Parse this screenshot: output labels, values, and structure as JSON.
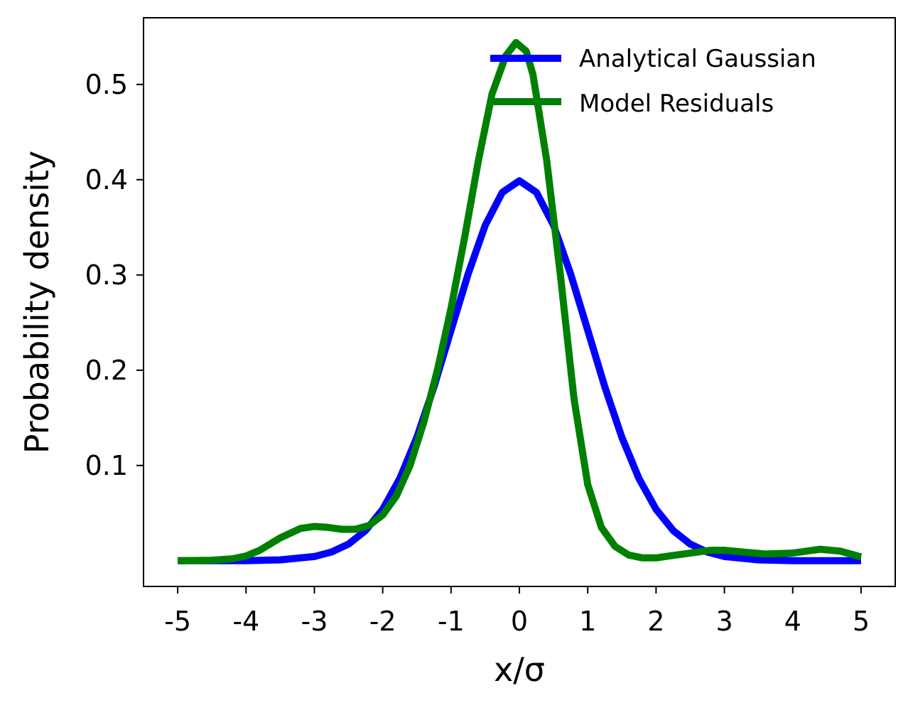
{
  "chart_data": {
    "type": "line",
    "title": "",
    "xlabel": "x/σ",
    "ylabel": "Probability density",
    "xlim": [
      -5.5,
      5.5
    ],
    "ylim": [
      -0.027,
      0.57
    ],
    "x_ticks": [
      -5,
      -4,
      -3,
      -2,
      -1,
      0,
      1,
      2,
      3,
      4,
      5
    ],
    "x_tick_labels": [
      "-5",
      "-4",
      "-3",
      "-2",
      "-1",
      "0",
      "1",
      "2",
      "3",
      "4",
      "5"
    ],
    "y_ticks": [
      0.1,
      0.2,
      0.3,
      0.4,
      0.5
    ],
    "y_tick_labels": [
      "0.1",
      "0.2",
      "0.3",
      "0.4",
      "0.5"
    ],
    "grid": false,
    "legend": {
      "placement": "upper-right",
      "frame": false
    },
    "series": [
      {
        "name": "Analytical Gaussian",
        "color": "#0000ff",
        "x": [
          -5.0,
          -4.5,
          -4.0,
          -3.5,
          -3.0,
          -2.75,
          -2.5,
          -2.25,
          -2.0,
          -1.75,
          -1.5,
          -1.25,
          -1.0,
          -0.75,
          -0.5,
          -0.25,
          0.0,
          0.25,
          0.5,
          0.75,
          1.0,
          1.25,
          1.5,
          1.75,
          2.0,
          2.25,
          2.5,
          2.75,
          3.0,
          3.5,
          4.0,
          4.5,
          5.0
        ],
        "y": [
          0.0,
          0.0,
          0.0001,
          0.0009,
          0.0044,
          0.0091,
          0.0175,
          0.0317,
          0.054,
          0.0863,
          0.1295,
          0.1826,
          0.242,
          0.3011,
          0.3521,
          0.3867,
          0.3989,
          0.3867,
          0.3521,
          0.3011,
          0.242,
          0.1826,
          0.1295,
          0.0863,
          0.054,
          0.0317,
          0.0175,
          0.0091,
          0.0044,
          0.0009,
          0.0001,
          0.0,
          0.0
        ]
      },
      {
        "name": "Model Residuals",
        "color": "#008000",
        "x": [
          -5.0,
          -4.5,
          -4.2,
          -4.0,
          -3.8,
          -3.5,
          -3.2,
          -3.0,
          -2.8,
          -2.6,
          -2.4,
          -2.2,
          -2.0,
          -1.8,
          -1.6,
          -1.4,
          -1.2,
          -1.0,
          -0.8,
          -0.6,
          -0.4,
          -0.2,
          -0.05,
          0.1,
          0.2,
          0.4,
          0.6,
          0.8,
          1.0,
          1.2,
          1.4,
          1.6,
          1.8,
          2.0,
          2.2,
          2.5,
          2.8,
          3.0,
          3.3,
          3.6,
          4.0,
          4.4,
          4.7,
          5.0
        ],
        "y": [
          0.0,
          0.0005,
          0.002,
          0.005,
          0.011,
          0.024,
          0.034,
          0.036,
          0.035,
          0.033,
          0.033,
          0.037,
          0.048,
          0.068,
          0.1,
          0.145,
          0.2,
          0.265,
          0.34,
          0.42,
          0.49,
          0.53,
          0.544,
          0.535,
          0.51,
          0.42,
          0.3,
          0.17,
          0.08,
          0.035,
          0.015,
          0.006,
          0.003,
          0.003,
          0.005,
          0.008,
          0.011,
          0.011,
          0.009,
          0.007,
          0.008,
          0.012,
          0.01,
          0.004
        ]
      }
    ]
  }
}
